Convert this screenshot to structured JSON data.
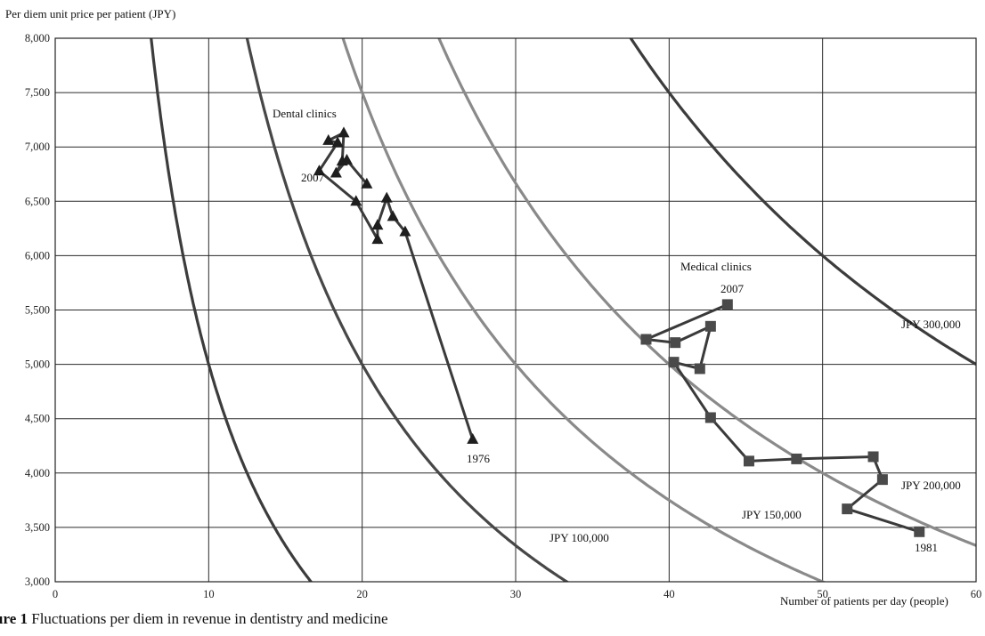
{
  "chart_data": {
    "type": "line",
    "ylabel": "Per diem unit price per patient (JPY)",
    "xlabel": "Number of patients per day  (people)",
    "xlim": [
      0,
      60
    ],
    "ylim": [
      3000,
      8000
    ],
    "xticks": [
      "0",
      "10",
      "20",
      "30",
      "40",
      "50",
      "60"
    ],
    "yticks": [
      "3,000",
      "3,500",
      "4,000",
      "4,500",
      "5,000",
      "5,500",
      "6,000",
      "6,500",
      "7,000",
      "7,500",
      "8,000"
    ],
    "grid": true,
    "iso_revenue_curves": [
      {
        "label": "",
        "revenue": 50000,
        "color": "#3c3c3c"
      },
      {
        "label": "JPY 100,000",
        "revenue": 100000,
        "color": "#474747"
      },
      {
        "label": "JPY 150,000",
        "revenue": 150000,
        "color": "#8a8a8a"
      },
      {
        "label": "JPY 200,000",
        "revenue": 200000,
        "color": "#8a8a8a"
      },
      {
        "label": "JPY 300,000",
        "revenue": 300000,
        "color": "#3c3c3c"
      }
    ],
    "series": [
      {
        "name": "Dental clinics",
        "marker": "triangle",
        "start_label": "1976",
        "end_label": "2007",
        "points": [
          [
            27.2,
            4310
          ],
          [
            22.8,
            6220
          ],
          [
            22.0,
            6360
          ],
          [
            21.6,
            6530
          ],
          [
            21.0,
            6280
          ],
          [
            21.0,
            6150
          ],
          [
            19.6,
            6500
          ],
          [
            17.2,
            6780
          ],
          [
            18.4,
            7040
          ],
          [
            17.8,
            7060
          ],
          [
            18.8,
            7130
          ],
          [
            18.7,
            6870
          ],
          [
            18.3,
            6760
          ],
          [
            19.0,
            6880
          ],
          [
            20.3,
            6660
          ]
        ]
      },
      {
        "name": "Medical clinics",
        "marker": "square",
        "start_label": "1981",
        "end_label": "2007",
        "points": [
          [
            56.3,
            3460
          ],
          [
            51.6,
            3670
          ],
          [
            53.9,
            3940
          ],
          [
            53.3,
            4150
          ],
          [
            48.3,
            4130
          ],
          [
            45.2,
            4110
          ],
          [
            42.7,
            4510
          ],
          [
            40.3,
            5020
          ],
          [
            42.0,
            4960
          ],
          [
            42.7,
            5350
          ],
          [
            40.4,
            5200
          ],
          [
            38.5,
            5230
          ],
          [
            43.8,
            5550
          ]
        ]
      }
    ],
    "annotations": {
      "dental_label": "Dental clinics",
      "medical_label": "Medical clinics"
    }
  },
  "caption": {
    "prefix": "ure 1",
    "text": "  Fluctuations per diem in revenue in dentistry and medicine"
  }
}
